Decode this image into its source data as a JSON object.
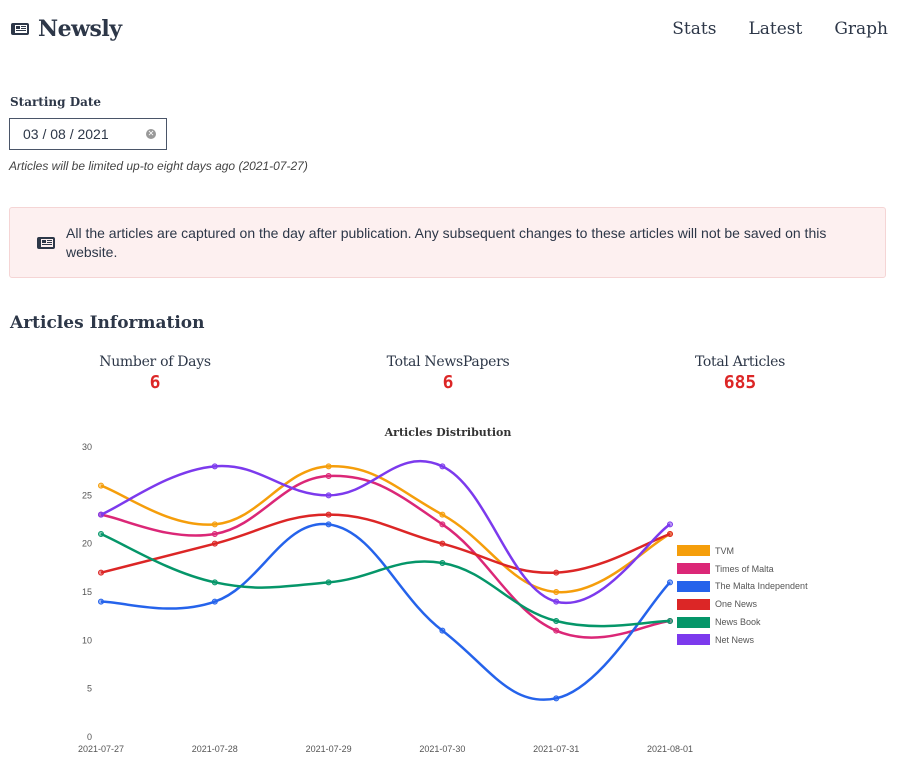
{
  "header": {
    "brand": "Newsly",
    "nav": [
      "Stats",
      "Latest",
      "Graph"
    ]
  },
  "filter": {
    "label": "Starting Date",
    "value": "03 / 08 / 2021",
    "hint": "Articles will be limited up-to eight days ago (2021-07-27)"
  },
  "notice": {
    "text": "All the articles are captured on the day after publication. Any subsequent changes to these articles will not be saved on this website."
  },
  "info": {
    "title": "Articles Information",
    "stats": [
      {
        "label": "Number of Days",
        "value": "6"
      },
      {
        "label": "Total NewsPapers",
        "value": "6"
      },
      {
        "label": "Total Articles",
        "value": "685"
      }
    ]
  },
  "chart_data": {
    "type": "line",
    "title": "Articles Distribution",
    "categories": [
      "2021-07-27",
      "2021-07-28",
      "2021-07-29",
      "2021-07-30",
      "2021-07-31",
      "2021-08-01"
    ],
    "ylim": [
      0,
      30
    ],
    "yticks": [
      0,
      5,
      10,
      15,
      20,
      25,
      30
    ],
    "legend_position": "right",
    "series": [
      {
        "name": "TVM",
        "color": "#f59e0b",
        "values": [
          26,
          22,
          28,
          23,
          15,
          21
        ]
      },
      {
        "name": "Times of Malta",
        "color": "#db2777",
        "values": [
          23,
          21,
          27,
          22,
          11,
          12
        ]
      },
      {
        "name": "The Malta Independent",
        "color": "#2563eb",
        "values": [
          14,
          14,
          22,
          11,
          4,
          16
        ]
      },
      {
        "name": "One News",
        "color": "#dc2626",
        "values": [
          17,
          20,
          23,
          20,
          17,
          21
        ]
      },
      {
        "name": "News Book",
        "color": "#059669",
        "values": [
          21,
          16,
          16,
          18,
          12,
          12
        ]
      },
      {
        "name": "Net News",
        "color": "#7c3aed",
        "values": [
          23,
          28,
          25,
          28,
          14,
          22
        ]
      }
    ]
  }
}
